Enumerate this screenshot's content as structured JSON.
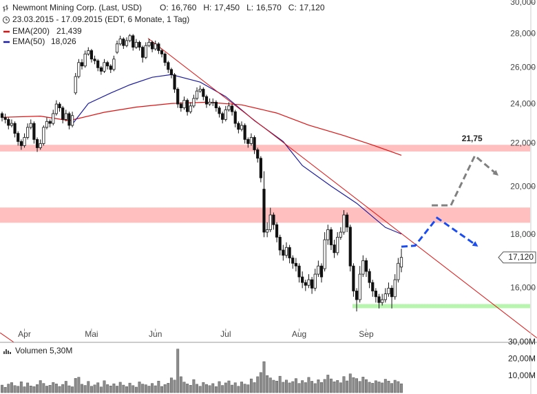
{
  "header": {
    "title": "Newmont Mining Corp. (Last, USD)",
    "quote": [
      {
        "label": "O:",
        "value": "16,760"
      },
      {
        "label": "H:",
        "value": "17,450"
      },
      {
        "label": "L:",
        "value": "16,570"
      },
      {
        "label": "C:",
        "value": "17,120"
      }
    ],
    "period": "23.03.2015 - 17.09.2015 (EDT, 6 Monate, 1 Tag)",
    "legend": [
      {
        "name": "EMA(200)",
        "value": "21,439"
      },
      {
        "name": "EMA(50)",
        "value": "18,026"
      }
    ],
    "volume_label": {
      "name": "Volumen",
      "value": "5,30M"
    }
  },
  "chart_data": {
    "type": "candlestick",
    "log_scale": true,
    "xlim": [
      -0.65,
      165.3
    ],
    "xticks": [
      {
        "value": 7,
        "label": "Apr"
      },
      {
        "value": 28,
        "label": "Mai"
      },
      {
        "value": 48,
        "label": "Jun"
      },
      {
        "value": 70,
        "label": "Jul"
      },
      {
        "value": 93,
        "label": "Aug"
      },
      {
        "value": 114,
        "label": "Sep"
      }
    ],
    "ylim": [
      14200,
      30000
    ],
    "yticks": [
      {
        "value": 16000,
        "label": "16,000"
      },
      {
        "value": 18000,
        "label": "18,000"
      },
      {
        "value": 20000,
        "label": "20,000"
      },
      {
        "value": 22000,
        "label": "22,000"
      },
      {
        "value": 24000,
        "label": "24,000"
      },
      {
        "value": 26000,
        "label": "26,000"
      },
      {
        "value": 28000,
        "label": "28,000"
      },
      {
        "value": 30000,
        "label": "30,000"
      }
    ],
    "close_label": "17,120",
    "candles": [
      [
        23500,
        23600,
        23100,
        23300
      ],
      [
        23300,
        23500,
        23000,
        23200
      ],
      [
        23200,
        23300,
        22700,
        22900
      ],
      [
        22900,
        23200,
        22800,
        23000
      ],
      [
        23000,
        23100,
        22300,
        22500
      ],
      [
        22500,
        22600,
        21900,
        22100
      ],
      [
        22100,
        22200,
        21700,
        21900
      ],
      [
        21900,
        22500,
        21800,
        22300
      ],
      [
        22300,
        23000,
        22200,
        22800
      ],
      [
        22800,
        23200,
        22700,
        23000
      ],
      [
        23000,
        23100,
        22000,
        22200
      ],
      [
        22200,
        22300,
        21600,
        21800
      ],
      [
        21800,
        22200,
        21700,
        22000
      ],
      [
        22000,
        22900,
        21900,
        22800
      ],
      [
        22800,
        23300,
        22700,
        23100
      ],
      [
        23100,
        23200,
        22800,
        23000
      ],
      [
        23000,
        23700,
        22900,
        23500
      ],
      [
        23500,
        24200,
        23400,
        24000
      ],
      [
        24000,
        24100,
        23600,
        23800
      ],
      [
        23800,
        23900,
        23000,
        23200
      ],
      [
        23200,
        23700,
        23100,
        23500
      ],
      [
        23500,
        23600,
        22700,
        22900
      ],
      [
        22900,
        23600,
        22800,
        23400
      ],
      [
        24600,
        25700,
        24500,
        25500
      ],
      [
        25500,
        26500,
        25400,
        26300
      ],
      [
        26300,
        26500,
        25900,
        26100
      ],
      [
        26100,
        27000,
        26000,
        26800
      ],
      [
        26800,
        27200,
        26700,
        27000
      ],
      [
        27000,
        27100,
        26300,
        26500
      ],
      [
        26500,
        26700,
        26200,
        26400
      ],
      [
        26400,
        26500,
        25800,
        26000
      ],
      [
        26000,
        26100,
        25600,
        25800
      ],
      [
        25800,
        26500,
        25700,
        26300
      ],
      [
        26300,
        26400,
        25900,
        26100
      ],
      [
        26100,
        26200,
        25700,
        25900
      ],
      [
        25900,
        26700,
        25800,
        26500
      ],
      [
        26900,
        27600,
        26800,
        27400
      ],
      [
        27400,
        27900,
        27300,
        27700
      ],
      [
        27700,
        27800,
        27100,
        27300
      ],
      [
        27300,
        27800,
        27200,
        27600
      ],
      [
        27600,
        28000,
        27500,
        27900
      ],
      [
        27900,
        28000,
        27000,
        27200
      ],
      [
        27200,
        27700,
        27100,
        27500
      ],
      [
        27500,
        27600,
        27000,
        27200
      ],
      [
        27200,
        27300,
        26300,
        26600
      ],
      [
        26600,
        27500,
        26500,
        27300
      ],
      [
        27300,
        27700,
        27200,
        27500
      ],
      [
        27500,
        27600,
        26900,
        27100
      ],
      [
        27100,
        27600,
        27000,
        27400
      ],
      [
        27400,
        27500,
        26800,
        27000
      ],
      [
        27000,
        27100,
        26600,
        26800
      ],
      [
        26800,
        26900,
        26100,
        26300
      ],
      [
        26300,
        26400,
        25700,
        25900
      ],
      [
        25900,
        26000,
        25400,
        25600
      ],
      [
        25600,
        25700,
        24600,
        24800
      ],
      [
        24800,
        24900,
        23800,
        24000
      ],
      [
        24000,
        24100,
        23600,
        23800
      ],
      [
        23800,
        24400,
        23700,
        24200
      ],
      [
        24200,
        24300,
        23400,
        23600
      ],
      [
        23600,
        24100,
        23500,
        23900
      ],
      [
        23900,
        24500,
        23800,
        24300
      ],
      [
        24300,
        24900,
        24200,
        24700
      ],
      [
        24700,
        25000,
        24600,
        24800
      ],
      [
        24800,
        24900,
        24200,
        24400
      ],
      [
        24400,
        24500,
        23800,
        24000
      ],
      [
        24000,
        24300,
        23900,
        24100
      ],
      [
        24100,
        24300,
        23900,
        24100
      ],
      [
        24100,
        24200,
        23600,
        23800
      ],
      [
        23800,
        23900,
        23300,
        23500
      ],
      [
        23500,
        23600,
        23000,
        23200
      ],
      [
        23200,
        23900,
        23100,
        23700
      ],
      [
        23700,
        24100,
        23600,
        23900
      ],
      [
        23900,
        24000,
        23400,
        23600
      ],
      [
        23600,
        23700,
        22800,
        23000
      ],
      [
        23000,
        23100,
        22500,
        22700
      ],
      [
        22700,
        23100,
        22600,
        22900
      ],
      [
        22900,
        23000,
        22000,
        22200
      ],
      [
        22200,
        22300,
        21800,
        22000
      ],
      [
        22000,
        22500,
        21900,
        22300
      ],
      [
        22300,
        22400,
        21500,
        21700
      ],
      [
        21700,
        21800,
        21100,
        21300
      ],
      [
        21300,
        21400,
        20200,
        20400
      ],
      [
        19900,
        20700,
        17900,
        18100
      ],
      [
        18100,
        18500,
        17900,
        18200
      ],
      [
        18200,
        19100,
        18100,
        18800
      ],
      [
        18800,
        18900,
        18200,
        18400
      ],
      [
        18400,
        18500,
        17700,
        17900
      ],
      [
        17900,
        18000,
        17200,
        17400
      ],
      [
        17400,
        17600,
        17000,
        17200
      ],
      [
        17200,
        17700,
        17100,
        17500
      ],
      [
        17500,
        17600,
        16900,
        17100
      ],
      [
        17100,
        17200,
        16700,
        16900
      ],
      [
        16900,
        17100,
        16600,
        16800
      ],
      [
        16800,
        16900,
        16200,
        16400
      ],
      [
        16400,
        16600,
        16000,
        16200
      ],
      [
        16200,
        16300,
        15900,
        16100
      ],
      [
        16100,
        16500,
        16000,
        16300
      ],
      [
        16300,
        16400,
        15800,
        16000
      ],
      [
        16000,
        16700,
        15900,
        16500
      ],
      [
        16500,
        17000,
        16400,
        16800
      ],
      [
        16800,
        16900,
        16200,
        16400
      ],
      [
        16700,
        18100,
        16600,
        17800
      ],
      [
        17800,
        18400,
        17600,
        18200
      ],
      [
        18200,
        18300,
        17400,
        17600
      ],
      [
        17600,
        17800,
        17100,
        17300
      ],
      [
        17300,
        18100,
        17200,
        17900
      ],
      [
        17900,
        18300,
        17800,
        18100
      ],
      [
        18100,
        19000,
        18000,
        18800
      ],
      [
        18800,
        18900,
        18100,
        18300
      ],
      [
        18300,
        18400,
        16600,
        16800
      ],
      [
        16800,
        16900,
        15700,
        15900
      ],
      [
        15900,
        16000,
        15200,
        15600
      ],
      [
        15600,
        16800,
        15500,
        16500
      ],
      [
        16500,
        17200,
        16400,
        17000
      ],
      [
        17000,
        17100,
        16400,
        16600
      ],
      [
        16600,
        16700,
        16000,
        16200
      ],
      [
        16200,
        16300,
        15700,
        15900
      ],
      [
        15900,
        16000,
        15500,
        15700
      ],
      [
        15700,
        15800,
        15300,
        15500
      ],
      [
        15500,
        15800,
        15400,
        15600
      ],
      [
        15600,
        16000,
        15500,
        15800
      ],
      [
        15800,
        16200,
        15700,
        16000
      ],
      [
        16000,
        16100,
        15300,
        15700
      ],
      [
        15700,
        16500,
        15600,
        16300
      ],
      [
        16300,
        17100,
        16200,
        16900
      ],
      [
        16760,
        17450,
        16570,
        17120
      ]
    ],
    "series": [
      {
        "name": "EMA(200)",
        "color": "#e01010",
        "x": [
          0,
          12,
          21,
          32,
          42,
          53,
          64,
          75,
          86,
          96,
          107,
          116,
          125
        ],
        "values": [
          23310,
          23370,
          23140,
          23570,
          23840,
          24030,
          24100,
          23960,
          23530,
          22910,
          22390,
          21930,
          21439
        ]
      },
      {
        "name": "EMA(50)",
        "color": "#1c1c9c",
        "x": [
          22,
          27,
          34,
          40,
          47,
          53,
          62,
          70,
          79,
          88,
          94,
          103,
          111,
          120,
          125
        ],
        "values": [
          22960,
          24030,
          24590,
          25040,
          25460,
          25610,
          25190,
          24400,
          23140,
          22100,
          20960,
          20030,
          19290,
          18290,
          18026
        ]
      }
    ],
    "trendlines": [
      {
        "color": "#e01010",
        "x": [
          45.7,
          167.4
        ],
        "values": [
          27740,
          14340
        ]
      },
      {
        "color": "#e01010",
        "x": [
          -0.6,
          3.7
        ],
        "values": [
          14500,
          14200
        ]
      }
    ],
    "bands": [
      {
        "color": "#ffbfbf",
        "x": [
          -0.65,
          165.3
        ],
        "y": [
          21620,
          21940
        ]
      },
      {
        "color": "#ffbfbf",
        "x": [
          -0.65,
          165.3
        ],
        "y": [
          18480,
          19110
        ]
      },
      {
        "color": "#b8f5ae",
        "x": [
          109.7,
          165.3
        ],
        "y": [
          15310,
          15450
        ]
      }
    ],
    "projections": [
      {
        "color": "#808080",
        "x": [
          134.5,
          140.5,
          148.0,
          154.9
        ],
        "values": [
          19200,
          19200,
          21420,
          20560
        ],
        "label": "21,75",
        "label_color": "#e01010"
      },
      {
        "color": "#1a4cf0",
        "x": [
          125.0,
          129.3,
          136.2,
          148.5
        ],
        "values": [
          17530,
          17570,
          18680,
          17580
        ]
      }
    ],
    "volume": {
      "color": "#8c8c8c",
      "vlim": [
        0,
        30
      ],
      "vticks": [
        {
          "value": 10,
          "label": "10,00M"
        },
        {
          "value": 20,
          "label": "20,00M"
        },
        {
          "value": 30,
          "label": "30,00M"
        }
      ],
      "values": [
        4.5,
        3.2,
        5.1,
        6.0,
        4.2,
        3.8,
        6.5,
        3.5,
        5.8,
        4.0,
        3.6,
        4.8,
        7.2,
        5.5,
        3.9,
        4.4,
        6.1,
        5.2,
        3.7,
        4.9,
        6.8,
        4.1,
        3.5,
        8.5,
        9.2,
        5.0,
        4.3,
        6.7,
        3.8,
        4.6,
        5.9,
        3.4,
        7.1,
        4.8,
        4.0,
        5.3,
        3.9,
        6.2,
        4.5,
        3.6,
        5.7,
        4.2,
        3.3,
        6.4,
        5.1,
        4.7,
        3.9,
        5.5,
        4.1,
        6.9,
        3.7,
        4.8,
        5.6,
        8.8,
        7.5,
        26.0,
        9.5,
        6.3,
        5.2,
        4.4,
        7.8,
        5.0,
        3.8,
        6.1,
        4.9,
        4.2,
        5.4,
        3.6,
        6.6,
        4.3,
        5.8,
        7.0,
        4.5,
        5.9,
        3.8,
        6.4,
        5.1,
        4.7,
        8.2,
        6.0,
        9.5,
        12.0,
        18.5,
        10.2,
        8.8,
        7.4,
        6.9,
        9.8,
        6.2,
        7.5,
        5.8,
        6.6,
        8.4,
        5.5,
        7.2,
        6.0,
        9.1,
        6.8,
        5.4,
        7.7,
        6.1,
        7.9,
        10.5,
        8.2,
        6.5,
        7.3,
        5.9,
        9.6,
        7.0,
        11.2,
        9.0,
        8.4,
        6.7,
        9.3,
        7.8,
        6.2,
        5.6,
        7.1,
        6.4,
        5.8,
        8.0,
        6.9,
        5.5,
        7.4,
        6.6,
        5.3
      ]
    }
  }
}
